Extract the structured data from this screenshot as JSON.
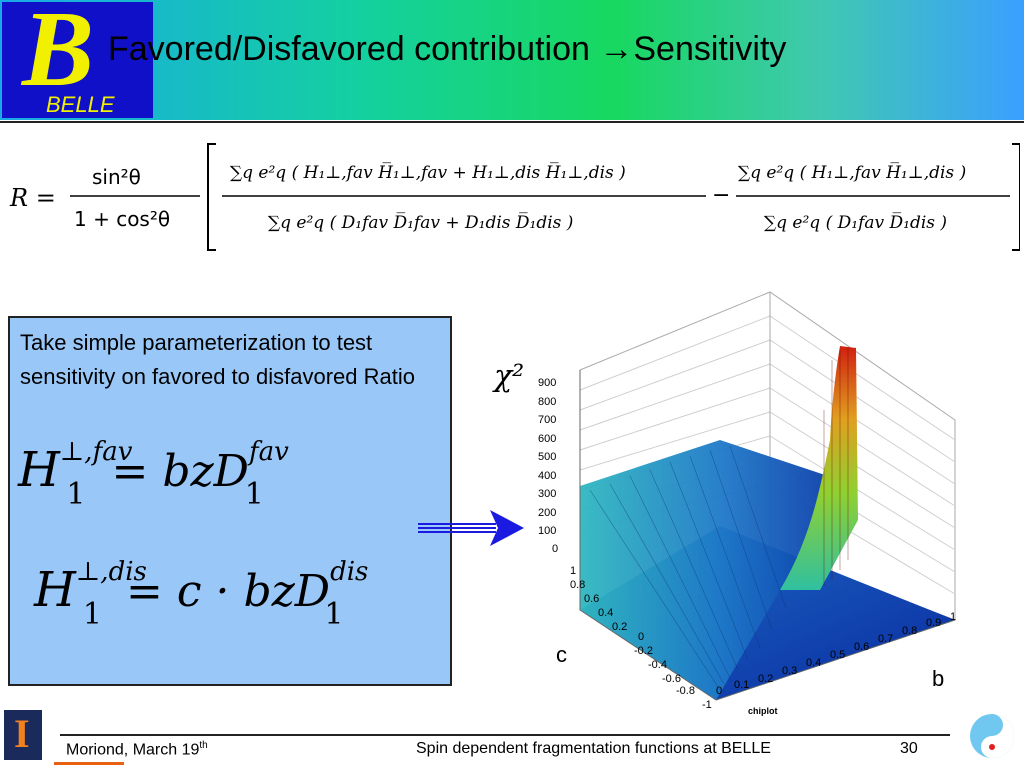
{
  "header": {
    "logo_text": "BELLE",
    "logo_letter": "B",
    "title": "Favored/Disfavored  contribution →Sensitivity"
  },
  "formula": {
    "lhs": "R =",
    "prefactor_num": "sin²θ",
    "prefactor_den": "1 + cos²θ",
    "term1_num": "∑q e²q ( H₁⊥,fav H̅₁⊥,fav + H₁⊥,dis H̅₁⊥,dis )",
    "term1_den": "∑q e²q ( D₁fav D̅₁fav + D₁dis D̅₁dis )",
    "term2_num": "∑q e²q ( H₁⊥,fav H̅₁⊥,dis )",
    "term2_den": "∑q e²q ( D₁fav D̅₁dis )"
  },
  "param_box": {
    "text": "Take simple parameterization to test sensitivity on favored to disfavored Ratio",
    "eq1_lhs": "H",
    "eq1_sup": "⊥,fav",
    "eq1_sub": "1",
    "eq1_rhs": "=     bzD",
    "eq1_rhs_sup": "fav",
    "eq1_rhs_sub": "1",
    "eq2_lhs": "H",
    "eq2_sup": "⊥,dis",
    "eq2_sub": "1",
    "eq2_rhs": "= c · bzD",
    "eq2_rhs_sup": "dis",
    "eq2_rhs_sub": "1"
  },
  "plot": {
    "z_label": "χ²",
    "z_ticks": [
      "900",
      "800",
      "700",
      "600",
      "500",
      "400",
      "300",
      "200",
      "100",
      "0"
    ],
    "c_ticks": [
      "1",
      "0.8",
      "0.6",
      "0.4",
      "0.2",
      "0",
      "-0.2",
      "-0.4",
      "-0.6",
      "-0.8",
      "-1"
    ],
    "b_ticks": [
      "0",
      "0.1",
      "0.2",
      "0.3",
      "0.4",
      "0.5",
      "0.6",
      "0.7",
      "0.8",
      "0.9",
      "1"
    ],
    "c_label": "c",
    "b_label": "b",
    "caption": "chiplot"
  },
  "footer": {
    "left_text": "Moriond, March 19",
    "left_sup": "th",
    "center_text": "Spin dependent fragmentation functions at BELLE",
    "page": "30"
  },
  "colors": {
    "logo_bg": "#1010c8",
    "logo_fg": "#f0f000",
    "box_bg": "#99c8f8",
    "arrow": "#1a1ae0",
    "footer_accent": "#e86010"
  },
  "icons": [
    "belle-logo-icon",
    "arrow-right-icon",
    "uiuc-logo-icon",
    "yin-yang-logo-icon"
  ]
}
